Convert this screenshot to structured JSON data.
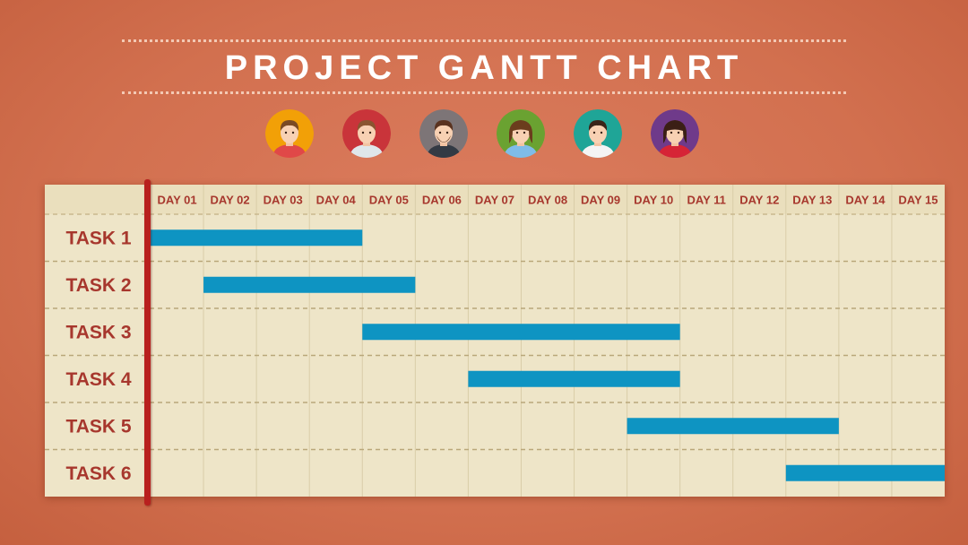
{
  "title": "PROJECT GANTT CHART",
  "colors": {
    "background": "#d4724f",
    "board": "#eee5c8",
    "label_text": "#a7372d",
    "bar": "#0e94c2",
    "spine": "#b8201e"
  },
  "team": [
    {
      "name": "avatar-1",
      "icon": "young-man-avatar-icon",
      "bg": "#f2a007",
      "hair": "#7a4a24",
      "shirt": "#e04848",
      "gender": "m"
    },
    {
      "name": "avatar-2",
      "icon": "man-avatar-icon",
      "bg": "#c9343a",
      "hair": "#8a5530",
      "shirt": "#dfe6ea",
      "gender": "m"
    },
    {
      "name": "avatar-3",
      "icon": "bearded-man-avatar-icon",
      "bg": "#7d7577",
      "hair": "#5a3320",
      "shirt": "#333a44",
      "gender": "m",
      "beard": true
    },
    {
      "name": "avatar-4",
      "icon": "woman-avatar-icon",
      "bg": "#6aa231",
      "hair": "#6b3d1d",
      "shirt": "#7fbce8",
      "gender": "f"
    },
    {
      "name": "avatar-5",
      "icon": "man-avatar-icon",
      "bg": "#1fa597",
      "hair": "#3a2418",
      "shirt": "#f4f4f4",
      "gender": "m"
    },
    {
      "name": "avatar-6",
      "icon": "woman-avatar-icon",
      "bg": "#6f3a8a",
      "hair": "#3b1f16",
      "shirt": "#d62436",
      "gender": "f"
    }
  ],
  "chart_data": {
    "type": "gantt",
    "title": "PROJECT GANTT CHART",
    "categories": [
      "DAY 01",
      "DAY 02",
      "DAY 03",
      "DAY 04",
      "DAY 05",
      "DAY 06",
      "DAY 07",
      "DAY 08",
      "DAY 09",
      "DAY 10",
      "DAY 11",
      "DAY 12",
      "DAY 13",
      "DAY 14",
      "DAY 15"
    ],
    "tasks": [
      {
        "label": "TASK 1",
        "start_day": 1,
        "end_day": 4
      },
      {
        "label": "TASK 2",
        "start_day": 2,
        "end_day": 5
      },
      {
        "label": "TASK 3",
        "start_day": 5,
        "end_day": 10
      },
      {
        "label": "TASK 4",
        "start_day": 7,
        "end_day": 10
      },
      {
        "label": "TASK 5",
        "start_day": 10,
        "end_day": 13
      },
      {
        "label": "TASK 6",
        "start_day": 13,
        "end_day": 15
      }
    ],
    "bar_color": "#0e94c2",
    "grid": true
  }
}
